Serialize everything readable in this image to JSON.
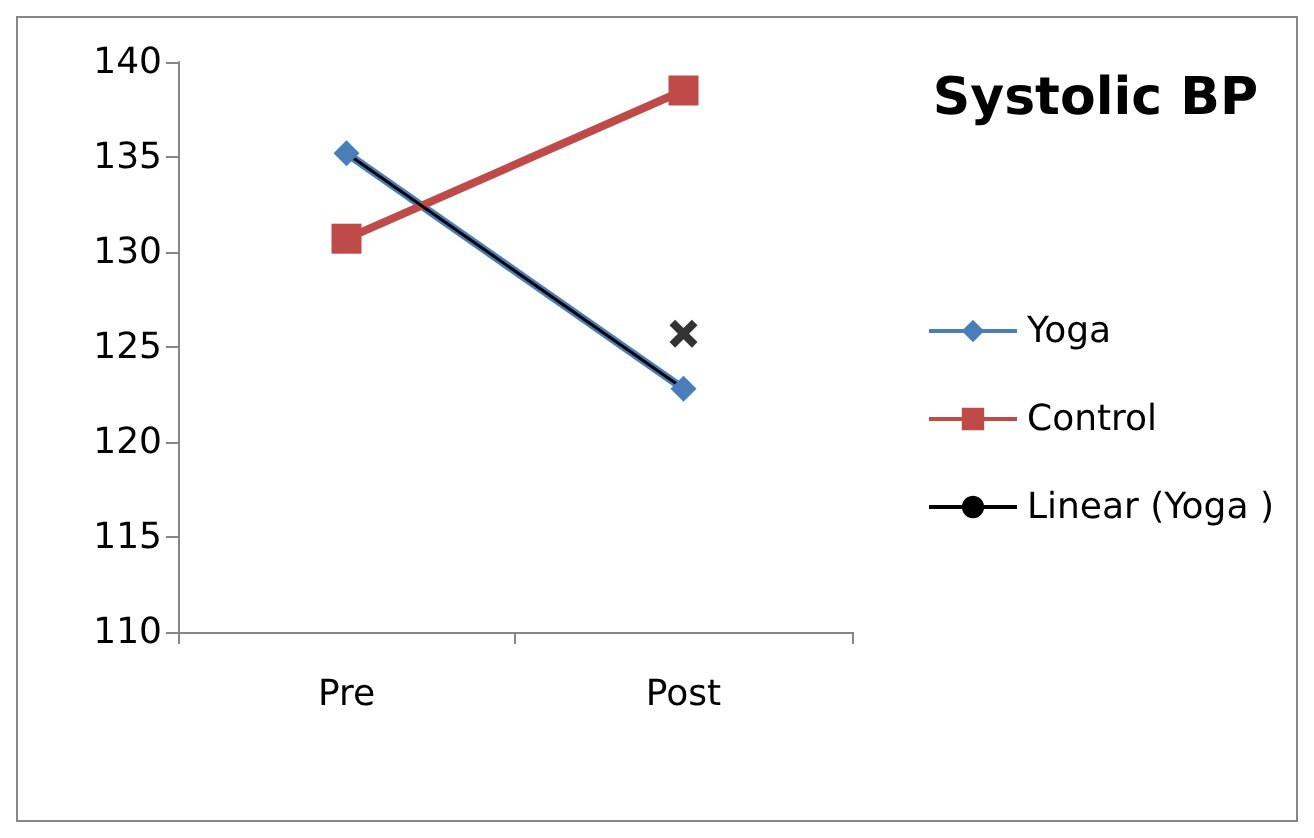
{
  "chart_data": {
    "type": "line",
    "title": "Systolic BP",
    "categories": [
      "Pre",
      "Post"
    ],
    "series": [
      {
        "name": "Yoga",
        "color": "#4a7ebb",
        "values": [
          135.2,
          122.8
        ],
        "marker": "diamond"
      },
      {
        "name": "Control",
        "color": "#be4b48",
        "values": [
          130.7,
          138.5
        ],
        "marker": "square"
      },
      {
        "name": "Linear (Yoga )",
        "color": "#000000",
        "values": [
          135.2,
          122.8
        ],
        "marker": "none"
      },
      {
        "type": "scatter",
        "color": "#000000",
        "values": [
          null,
          125.7
        ],
        "marker": "cross"
      }
    ],
    "ylim": [
      110,
      140
    ],
    "yticks": [
      110,
      115,
      120,
      125,
      130,
      135,
      140
    ],
    "grid": false,
    "legend": "right"
  }
}
